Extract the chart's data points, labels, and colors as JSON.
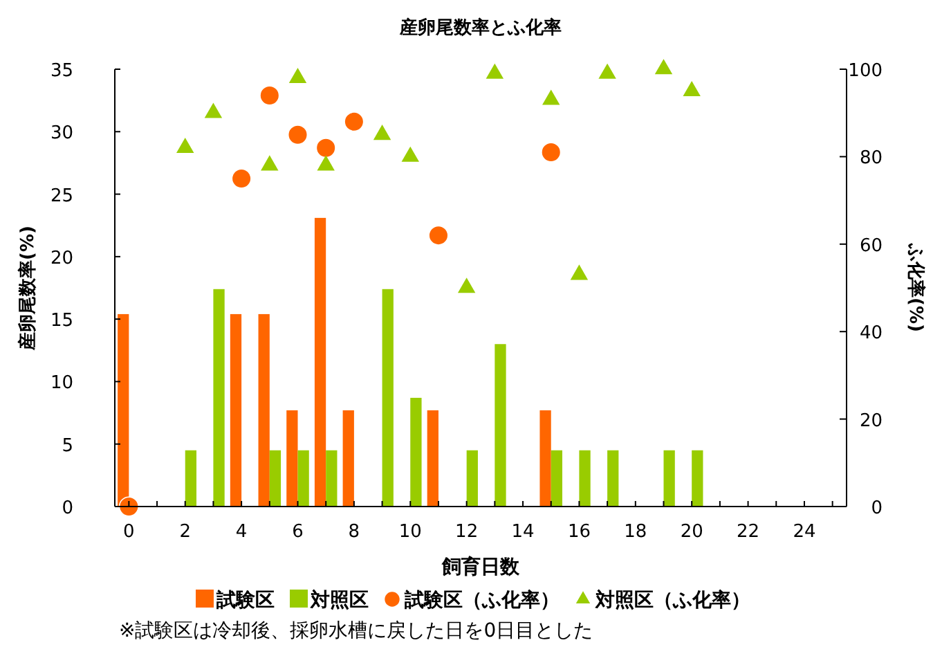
{
  "chart_data": {
    "type": "bar",
    "title": "産卵尾数率とふ化率",
    "xlabel": "飼育日数",
    "ylabel": "産卵尾数率(%)",
    "y2label": "ふ化率(%)",
    "xlim": [
      -0.5,
      25.5
    ],
    "xticks": [
      0,
      {
        "value": 1,
        "label": null
      },
      2,
      {
        "value": 3,
        "label": null
      },
      4,
      {
        "value": 5,
        "label": null
      },
      6,
      {
        "value": 7,
        "label": null
      },
      8,
      {
        "value": 9,
        "label": null
      },
      10,
      {
        "value": 11,
        "label": null
      },
      12,
      {
        "value": 13,
        "label": null
      },
      14,
      {
        "value": 15,
        "label": null
      },
      16,
      {
        "value": 17,
        "label": null
      },
      18,
      {
        "value": 19,
        "label": null
      },
      20,
      {
        "value": 21,
        "label": null
      },
      22,
      {
        "value": 23,
        "label": null
      },
      24,
      {
        "value": 25,
        "label": null
      }
    ],
    "ylim": [
      0,
      35
    ],
    "yticks": [
      0,
      5,
      10,
      15,
      20,
      25,
      30,
      35
    ],
    "y2lim": [
      0,
      100
    ],
    "y2ticks": [
      0,
      20,
      40,
      60,
      80,
      100
    ],
    "legend": "bottom",
    "grid": false,
    "series": [
      {
        "name": "試験区",
        "color": "#ff6600",
        "x": [
          0,
          4,
          5,
          6,
          7,
          8,
          11,
          15
        ],
        "values": [
          15.4,
          15.4,
          15.4,
          7.7,
          23.1,
          7.7,
          7.7,
          7.7
        ]
      },
      {
        "name": "対照区",
        "color": "#99cc00",
        "x": [
          2,
          3,
          5,
          6,
          7,
          9,
          10,
          12,
          13,
          15,
          16,
          17,
          19,
          20
        ],
        "values": [
          4.5,
          17.4,
          4.5,
          4.5,
          4.5,
          17.4,
          8.7,
          4.5,
          13.0,
          4.5,
          4.5,
          4.5,
          4.5,
          4.5
        ]
      },
      {
        "name": "試験区（ふ化率）",
        "type": "scatter",
        "axis": "y2",
        "marker": "circle",
        "color": "#ff6600",
        "x": [
          0,
          4,
          5,
          6,
          7,
          8,
          11,
          15
        ],
        "values": [
          0,
          75,
          94,
          85,
          82,
          88,
          62,
          81
        ]
      },
      {
        "name": "対照区（ふ化率）",
        "type": "scatter",
        "axis": "y2",
        "marker": "triangle",
        "color": "#99cc00",
        "x": [
          2,
          3,
          5,
          6,
          7,
          9,
          10,
          12,
          13,
          15,
          16,
          17,
          19,
          20
        ],
        "values": [
          82,
          90,
          78,
          98,
          78,
          85,
          80,
          50,
          99,
          93,
          53,
          99,
          100,
          95
        ]
      }
    ],
    "annotations": [
      "※試験区は冷却後、採卵水槽に戻した日を0日目とした"
    ]
  }
}
